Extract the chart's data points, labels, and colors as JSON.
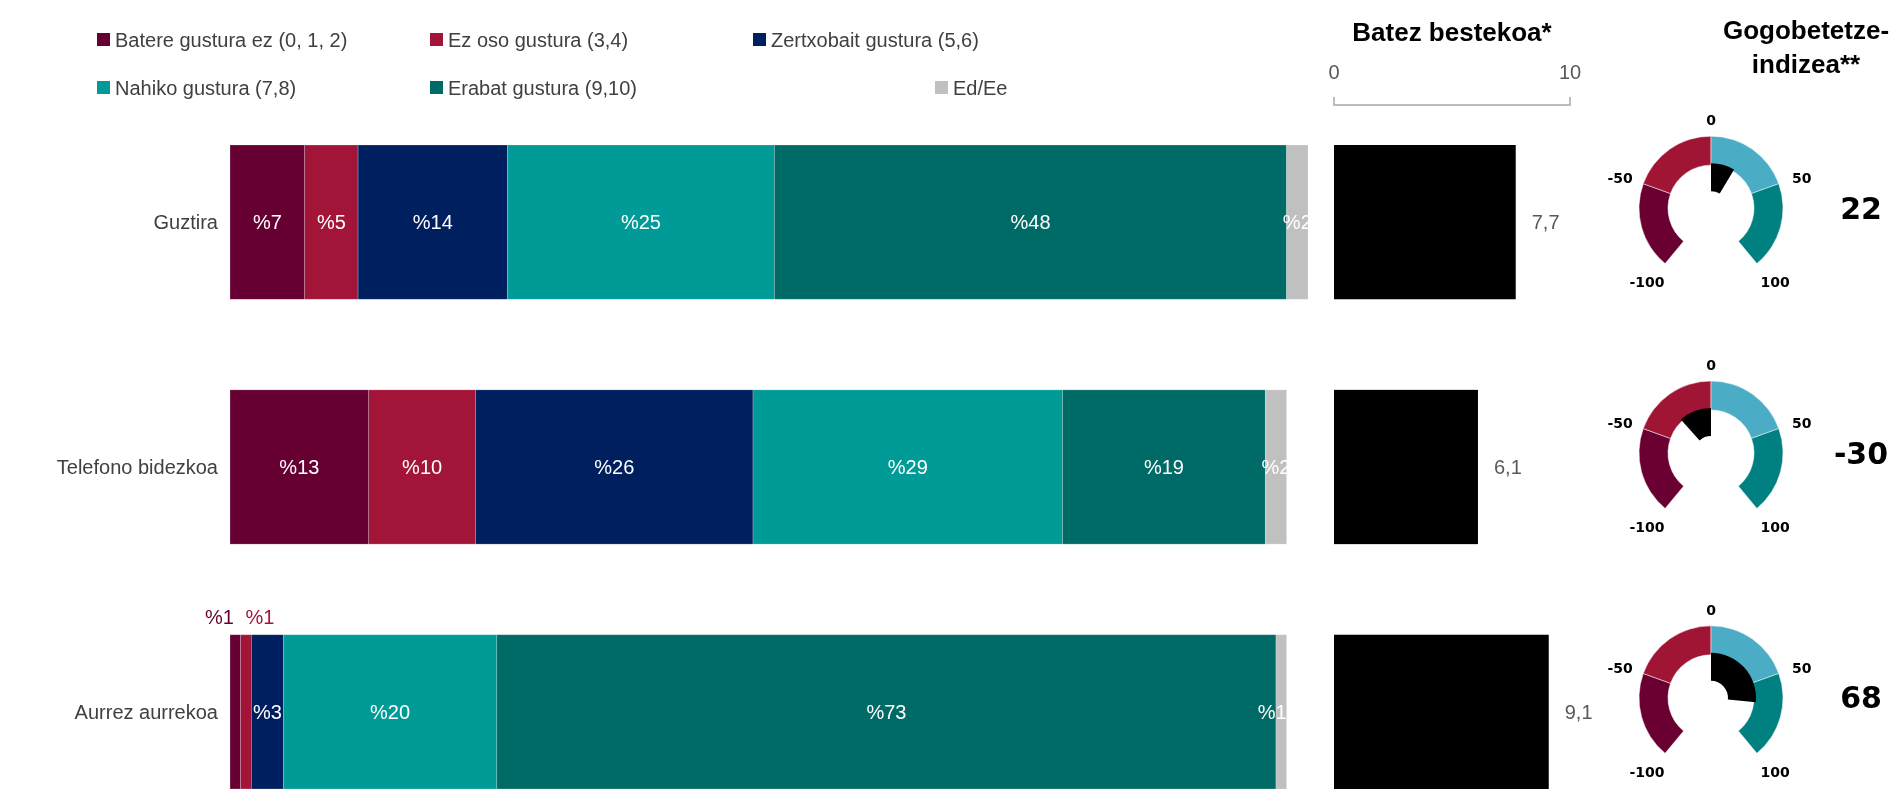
{
  "chart_data": [
    {
      "type": "bar",
      "orientation": "horizontal",
      "stacked": true,
      "legend": "top",
      "categories": [
        "Guztira",
        "Telefono bidezkoa",
        "Aurrez aurrekoa"
      ],
      "series": [
        {
          "name": "Batere gustura ez (0, 1, 2)",
          "color": "#660033",
          "values": [
            7,
            13,
            1
          ],
          "value_labels": [
            "%7",
            "%13",
            "%1"
          ]
        },
        {
          "name": "Ez oso gustura (3,4)",
          "color": "#a31538",
          "values": [
            5,
            10,
            1
          ],
          "value_labels": [
            "%5",
            "%10",
            "%1"
          ]
        },
        {
          "name": "Zertxobait gustura (5,6)",
          "color": "#001f5f",
          "values": [
            14,
            26,
            3
          ],
          "value_labels": [
            "%14",
            "%26",
            "%3"
          ]
        },
        {
          "name": "Nahiko gustura (7,8)",
          "color": "#009b96",
          "values": [
            25,
            29,
            20
          ],
          "value_labels": [
            "%25",
            "%29",
            "%20"
          ]
        },
        {
          "name": "Erabat gustura (9,10)",
          "color": "#006a66",
          "values": [
            48,
            19,
            73
          ],
          "value_labels": [
            "%48",
            "%19",
            "%73"
          ]
        },
        {
          "name": "Ed/Ee",
          "color": "#c0c0c0",
          "values": [
            2,
            2,
            1
          ],
          "value_labels": [
            "%2",
            "%2",
            "%1"
          ]
        }
      ]
    },
    {
      "type": "bar",
      "orientation": "horizontal",
      "title": "Batez bestekoa*",
      "tick_labels": "x",
      "xlim": [
        0,
        10
      ],
      "xticks": [
        0,
        10
      ],
      "color": "#000000",
      "values": [
        7.7,
        6.1,
        9.1
      ],
      "value_labels": [
        "7,7",
        "6,1",
        "9,1"
      ]
    },
    {
      "type": "other",
      "title": "Gogobetetze-indizea**",
      "annotations": [
        "-100",
        "-50",
        "0",
        "50",
        "100"
      ],
      "color": "#000000",
      "data_labels": true,
      "values": [
        22,
        -30,
        68
      ]
    }
  ]
}
